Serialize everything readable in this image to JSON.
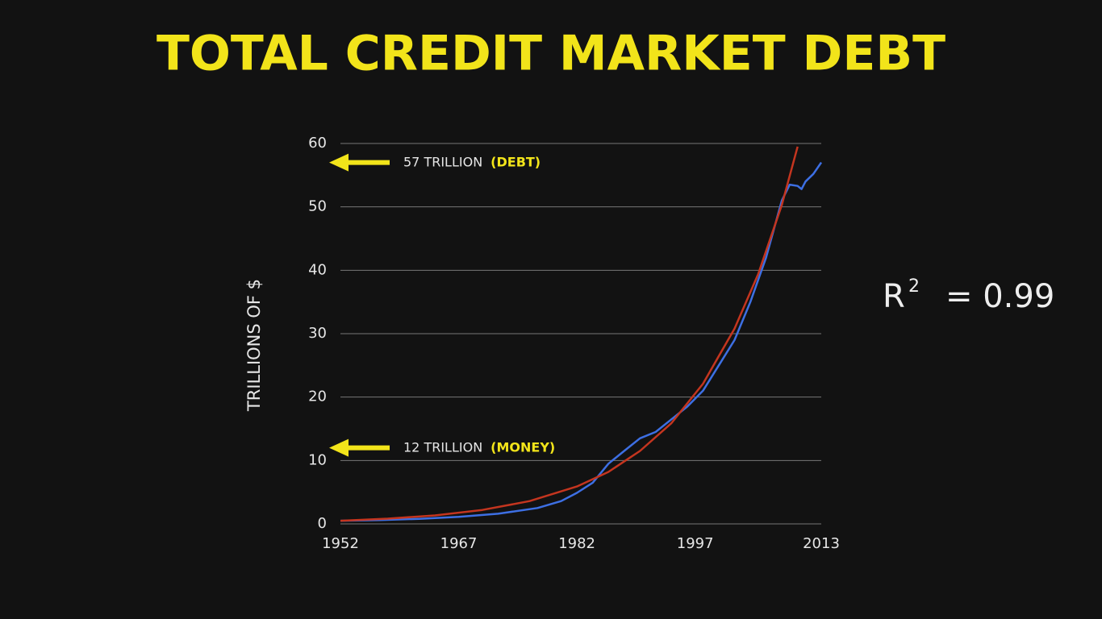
{
  "chart_data": {
    "type": "line",
    "title": "TOTAL CREDIT MARKET DEBT",
    "ylabel": "TRILLIONS OF $",
    "xlim": [
      1952,
      2013
    ],
    "xticks": [
      1952,
      1967,
      1982,
      1997,
      2013
    ],
    "ylim": [
      0,
      60
    ],
    "yticks": [
      0,
      10,
      20,
      30,
      40,
      50,
      60
    ],
    "grid": true,
    "series": [
      {
        "color": "#3d6fe3",
        "x": [
          1952,
          1957,
          1962,
          1967,
          1972,
          1977,
          1980,
          1982,
          1984,
          1986,
          1988,
          1990,
          1992,
          1994,
          1996,
          1998,
          2000,
          2002,
          2004,
          2006,
          2008,
          2009,
          2010,
          2010.5,
          2011,
          2012,
          2013
        ],
        "values": [
          0.5,
          0.6,
          0.8,
          1.1,
          1.6,
          2.5,
          3.6,
          4.9,
          6.5,
          9.5,
          11.5,
          13.5,
          14.5,
          16.5,
          18.5,
          21,
          25,
          29,
          35,
          42,
          51,
          53.5,
          53.3,
          52.8,
          54,
          55.2,
          57
        ]
      },
      {
        "color": "#c4351f",
        "x": [
          1952,
          1958,
          1964,
          1970,
          1976,
          1982,
          1986,
          1990,
          1994,
          1998,
          2002,
          2005,
          2008,
          2010
        ],
        "values": [
          0.5,
          0.82,
          1.34,
          2.2,
          3.6,
          5.9,
          8.2,
          11.5,
          15.9,
          22.1,
          30.8,
          39.4,
          50.3,
          59.5
        ]
      }
    ],
    "annotations": [
      {
        "text": "57 TRILLION",
        "highlight": "(DEBT)",
        "y": 57
      },
      {
        "text": "12 TRILLION",
        "highlight": "(MONEY)",
        "y": 12
      }
    ],
    "fit": {
      "symbol": "R",
      "superscript": "2",
      "text": "= 0.99"
    }
  }
}
